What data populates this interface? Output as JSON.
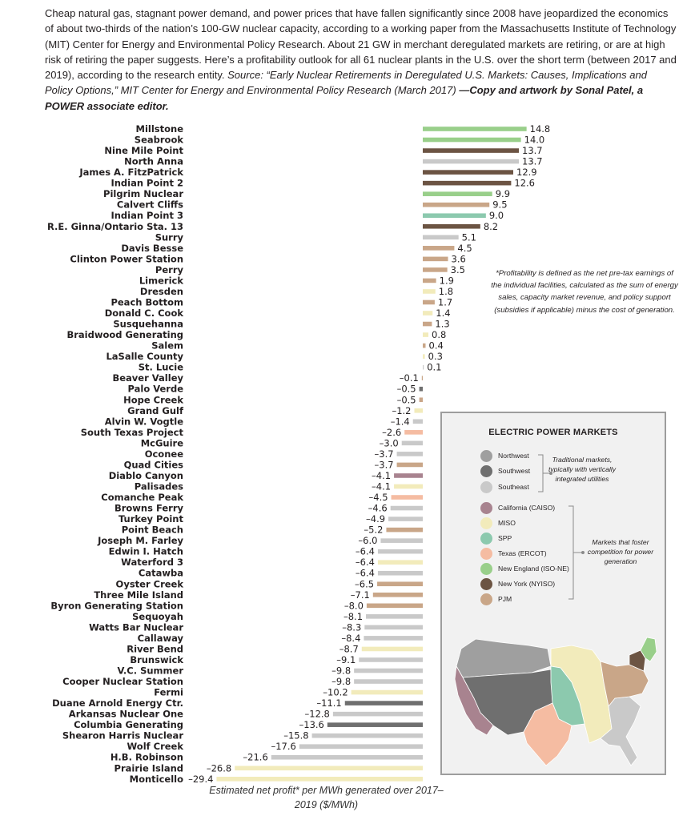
{
  "intro": {
    "body": "Cheap natural gas, stagnant power demand, and power prices that have fallen significantly since 2008 have jeopardized the economics of about two-thirds of the nation’s 100-GW nuclear capacity, according to a working paper from the Massachusetts Institute of Technology (MIT) Center for Energy and Environmental Policy Research. About 21 GW in merchant deregulated markets are retiring, or are at high risk of retiring the paper suggests. Here’s a profitability outlook for all 61 nuclear plants in the U.S. over the short term (between 2017 and 2019), according to the research entity.",
    "source": "Source: “Early Nuclear Retirements in Deregulated U.S. Markets: Causes, Implications and Policy Options,” MIT Center for Energy and Environmental Policy Research (March 2017)",
    "credit": "—Copy and artwork by Sonal Patel, a POWER associate editor."
  },
  "chart_data": {
    "type": "bar",
    "orientation": "horizontal",
    "xlabel": "Estimated net profit* per MWh generated over 2017–2019 ($/MWh)",
    "xlim": [
      -29.4,
      14.8
    ],
    "footnote": "*Profitability is defined as the net pre-tax earnings of the individual facilities, calculated as the sum of energy sales, capacity market revenue, and policy support (subsidies if applicable) minus the cost of generation.",
    "plants": [
      {
        "name": "Millstone",
        "value": 14.8,
        "label": "14.8",
        "market": "New England (ISO-NE)"
      },
      {
        "name": "Seabrook",
        "value": 14.0,
        "label": "14.0",
        "market": "New England (ISO-NE)"
      },
      {
        "name": "Nine Mile Point",
        "value": 13.7,
        "label": "13.7",
        "market": "New York (NYISO)"
      },
      {
        "name": "North Anna",
        "value": 13.7,
        "label": "13.7",
        "market": "Southeast"
      },
      {
        "name": "James A. FitzPatrick",
        "value": 12.9,
        "label": "12.9",
        "market": "New York (NYISO)"
      },
      {
        "name": "Indian Point 2",
        "value": 12.6,
        "label": "12.6",
        "market": "New York (NYISO)"
      },
      {
        "name": "Pilgrim Nuclear",
        "value": 9.9,
        "label": "9.9",
        "market": "New England (ISO-NE)"
      },
      {
        "name": "Calvert Cliffs",
        "value": 9.5,
        "label": "9.5",
        "market": "PJM"
      },
      {
        "name": "Indian Point 3",
        "value": 9.0,
        "label": "9.0",
        "market": "SPP"
      },
      {
        "name": "R.E. Ginna/Ontario Sta. 13",
        "value": 8.2,
        "label": "8.2",
        "market": "New York (NYISO)"
      },
      {
        "name": "Surry",
        "value": 5.1,
        "label": "5.1",
        "market": "Southeast"
      },
      {
        "name": "Davis Besse",
        "value": 4.5,
        "label": "4.5",
        "market": "PJM"
      },
      {
        "name": "Clinton Power Station",
        "value": 3.6,
        "label": "3.6",
        "market": "PJM"
      },
      {
        "name": "Perry",
        "value": 3.5,
        "label": "3.5",
        "market": "PJM"
      },
      {
        "name": "Limerick",
        "value": 1.9,
        "label": "1.9",
        "market": "PJM"
      },
      {
        "name": "Dresden",
        "value": 1.8,
        "label": "1.8",
        "market": "MISO"
      },
      {
        "name": "Peach Bottom",
        "value": 1.7,
        "label": "1.7",
        "market": "PJM"
      },
      {
        "name": "Donald C. Cook",
        "value": 1.4,
        "label": "1.4",
        "market": "MISO"
      },
      {
        "name": "Susquehanna",
        "value": 1.3,
        "label": "1.3",
        "market": "PJM"
      },
      {
        "name": "Braidwood Generating",
        "value": 0.8,
        "label": "0.8",
        "market": "MISO"
      },
      {
        "name": "Salem",
        "value": 0.4,
        "label": "0.4",
        "market": "PJM"
      },
      {
        "name": "LaSalle County",
        "value": 0.3,
        "label": "0.3",
        "market": "MISO"
      },
      {
        "name": "St. Lucie",
        "value": 0.1,
        "label": "0.1",
        "market": "Southeast"
      },
      {
        "name": "Beaver Valley",
        "value": -0.1,
        "label": "–0.1",
        "market": "PJM"
      },
      {
        "name": "Palo Verde",
        "value": -0.5,
        "label": "–0.5",
        "market": "Southwest"
      },
      {
        "name": "Hope Creek",
        "value": -0.5,
        "label": "–0.5",
        "market": "PJM"
      },
      {
        "name": "Grand Gulf",
        "value": -1.2,
        "label": "–1.2",
        "market": "MISO"
      },
      {
        "name": "Alvin W. Vogtle",
        "value": -1.4,
        "label": "–1.4",
        "market": "Southeast"
      },
      {
        "name": "South Texas Project",
        "value": -2.6,
        "label": "–2.6",
        "market": "Texas (ERCOT)"
      },
      {
        "name": "McGuire",
        "value": -3.0,
        "label": "–3.0",
        "market": "Southeast"
      },
      {
        "name": "Oconee",
        "value": -3.7,
        "label": "–3.7",
        "market": "Southeast"
      },
      {
        "name": "Quad Cities",
        "value": -3.7,
        "label": "–3.7",
        "market": "PJM"
      },
      {
        "name": "Diablo Canyon",
        "value": -4.1,
        "label": "–4.1",
        "market": "California (CAISO)"
      },
      {
        "name": "Palisades",
        "value": -4.1,
        "label": "–4.1",
        "market": "MISO"
      },
      {
        "name": "Comanche Peak",
        "value": -4.5,
        "label": "–4.5",
        "market": "Texas (ERCOT)"
      },
      {
        "name": "Browns Ferry",
        "value": -4.6,
        "label": "–4.6",
        "market": "Southeast"
      },
      {
        "name": "Turkey Point",
        "value": -4.9,
        "label": "–4.9",
        "market": "Southeast"
      },
      {
        "name": "Point Beach",
        "value": -5.2,
        "label": "–5.2",
        "market": "PJM"
      },
      {
        "name": "Joseph M. Farley",
        "value": -6.0,
        "label": "–6.0",
        "market": "Southeast"
      },
      {
        "name": "Edwin I. Hatch",
        "value": -6.4,
        "label": "–6.4",
        "market": "Southeast"
      },
      {
        "name": "Waterford 3",
        "value": -6.4,
        "label": "–6.4",
        "market": "MISO"
      },
      {
        "name": "Catawba",
        "value": -6.4,
        "label": "–6.4",
        "market": "Southeast"
      },
      {
        "name": "Oyster Creek",
        "value": -6.5,
        "label": "–6.5",
        "market": "PJM"
      },
      {
        "name": "Three Mile Island",
        "value": -7.1,
        "label": "–7.1",
        "market": "PJM"
      },
      {
        "name": "Byron Generating Station",
        "value": -8.0,
        "label": "–8.0",
        "market": "PJM"
      },
      {
        "name": "Sequoyah",
        "value": -8.1,
        "label": "–8.1",
        "market": "Southeast"
      },
      {
        "name": "Watts Bar Nuclear",
        "value": -8.3,
        "label": "–8.3",
        "market": "Southeast"
      },
      {
        "name": "Callaway",
        "value": -8.4,
        "label": "–8.4",
        "market": "Southeast"
      },
      {
        "name": "River Bend",
        "value": -8.7,
        "label": "–8.7",
        "market": "MISO"
      },
      {
        "name": "Brunswick",
        "value": -9.1,
        "label": "–9.1",
        "market": "Southeast"
      },
      {
        "name": "V.C. Summer",
        "value": -9.8,
        "label": "–9.8",
        "market": "Southeast"
      },
      {
        "name": "Cooper Nuclear Station",
        "value": -9.8,
        "label": "–9.8",
        "market": "Southeast"
      },
      {
        "name": "Fermi",
        "value": -10.2,
        "label": "–10.2",
        "market": "MISO"
      },
      {
        "name": "Duane Arnold Energy Ctr.",
        "value": -11.1,
        "label": "–11.1",
        "market": "Southwest"
      },
      {
        "name": "Arkansas Nuclear One",
        "value": -12.8,
        "label": "–12.8",
        "market": "Southeast"
      },
      {
        "name": "Columbia Generating",
        "value": -13.6,
        "label": "–13.6",
        "market": "Southwest"
      },
      {
        "name": "Shearon Harris Nuclear",
        "value": -15.8,
        "label": "–15.8",
        "market": "Southeast"
      },
      {
        "name": "Wolf Creek",
        "value": -17.6,
        "label": "–17.6",
        "market": "Southeast"
      },
      {
        "name": "H.B. Robinson",
        "value": -21.6,
        "label": "–21.6",
        "market": "Southeast"
      },
      {
        "name": "Prairie Island",
        "value": -26.8,
        "label": "–26.8",
        "market": "MISO"
      },
      {
        "name": "Monticello",
        "value": -29.4,
        "label": "–29.4",
        "market": "MISO"
      }
    ]
  },
  "legend": {
    "title": "ELECTRIC POWER MARKETS",
    "traditional": [
      {
        "name": "Northwest",
        "color": "#9f9f9f"
      },
      {
        "name": "Southwest",
        "color": "#6f6f6f"
      },
      {
        "name": "Southeast",
        "color": "#c9c9c9"
      }
    ],
    "traditional_note": "Traditional markets, typically with vertically integrated utilities",
    "competitive": [
      {
        "name": "California (CAISO)",
        "color": "#a8838f"
      },
      {
        "name": "MISO",
        "color": "#f2ebbb"
      },
      {
        "name": "SPP",
        "color": "#8cc9ae"
      },
      {
        "name": "Texas (ERCOT)",
        "color": "#f5bca2"
      },
      {
        "name": "New England (ISO-NE)",
        "color": "#99cf8a"
      },
      {
        "name": "New York (NYISO)",
        "color": "#6c5443"
      },
      {
        "name": "PJM",
        "color": "#c9a688"
      }
    ],
    "competitive_note": "Markets that foster competition for power generation"
  }
}
